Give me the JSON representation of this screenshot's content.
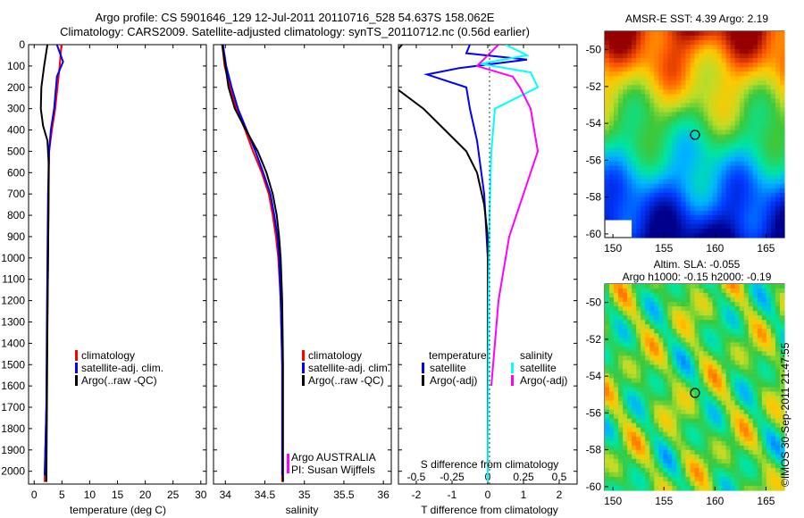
{
  "header": {
    "line1": "Argo profile: CS 5901646_129 12-Jul-2011 20110716_528 54.637S 158.062E",
    "line2": "Climatology: CARS2009. Satellite-adjusted climatology: synTS_20110712.nc (0.56d earlier)"
  },
  "maps": {
    "sst_title": "AMSR-E SST: 4.39 Argo: 2.19",
    "sla_title1": "Altim. SLA: -0.055",
    "sla_title2": "Argo h1000: -0.15 h2000: -0.19",
    "lat_ticks": [
      "-50",
      "-52",
      "-54",
      "-56",
      "-58",
      "-60"
    ],
    "lon_ticks": [
      "150",
      "155",
      "160",
      "165"
    ],
    "float_lat": -54.637,
    "float_lon": 158.062
  },
  "stamp": "©IMOS 30-Sep-2011 21:47:55",
  "colors": {
    "climatology": "#ff0000",
    "satellite": "#0000ff",
    "argo": "#000000",
    "satellite_salinity": "#00ffff",
    "argo_salinity": "#ff00ff"
  },
  "chart_data": [
    {
      "type": "line",
      "xlabel": "temperature (deg C)",
      "ylabel": "",
      "xlim": [
        -1,
        31
      ],
      "ylim": [
        2060,
        0
      ],
      "x_ticks": [
        "0",
        "5",
        "10",
        "15",
        "20",
        "25",
        "30"
      ],
      "y_ticks": [
        "0",
        "100",
        "200",
        "300",
        "400",
        "500",
        "600",
        "700",
        "800",
        "900",
        "1000",
        "1100",
        "1200",
        "1300",
        "1400",
        "1500",
        "1600",
        "1700",
        "1800",
        "1900",
        "2000"
      ],
      "legend": [
        "climatology",
        "satellite-adj. clim.",
        "Argo(..raw -QC)"
      ],
      "series": [
        {
          "name": "climatology",
          "x": [
            4.9,
            4.6,
            4.2,
            3.8,
            3.2,
            2.7,
            2.6,
            2.5,
            2.4,
            2.2,
            1.9
          ],
          "y": [
            0,
            100,
            200,
            300,
            400,
            500,
            700,
            1000,
            1300,
            1700,
            2050
          ]
        },
        {
          "name": "satellite-adj. clim.",
          "x": [
            4.1,
            5.2,
            4.1,
            3.6,
            3.0,
            2.7,
            2.5,
            2.4,
            2.3,
            2.2,
            1.9
          ],
          "y": [
            0,
            80,
            150,
            300,
            400,
            500,
            700,
            1000,
            1300,
            1700,
            2020
          ]
        },
        {
          "name": "Argo(..raw -QC)",
          "x": [
            2.4,
            1.8,
            1.3,
            1.2,
            1.6,
            2.4,
            2.6,
            2.6,
            2.5,
            2.4,
            2.3,
            2.2
          ],
          "y": [
            0,
            100,
            200,
            300,
            380,
            450,
            550,
            700,
            1000,
            1300,
            1700,
            2050
          ]
        }
      ]
    },
    {
      "type": "line",
      "xlabel": "salinity",
      "ylabel": "",
      "xlim": [
        33.85,
        36.1
      ],
      "ylim": [
        2060,
        0
      ],
      "x_ticks": [
        "34",
        "34.5",
        "35",
        "35.5",
        "36"
      ],
      "legend": [
        "climatology",
        "satellite-adj. clim.",
        "Argo(..raw -QC)"
      ],
      "annotation1": "Argo AUSTRALIA",
      "annotation2": "PI: Susan Wijffels",
      "series": [
        {
          "name": "climatology",
          "x": [
            33.96,
            33.99,
            34.06,
            34.14,
            34.25,
            34.35,
            34.46,
            34.55,
            34.6,
            34.64,
            34.67,
            34.7,
            34.72,
            34.72
          ],
          "y": [
            0,
            100,
            200,
            300,
            400,
            500,
            600,
            700,
            800,
            900,
            1000,
            1200,
            1500,
            2050
          ]
        },
        {
          "name": "satellite-adj. clim.",
          "x": [
            33.97,
            34.01,
            34.08,
            34.16,
            34.27,
            34.38,
            34.48,
            34.57,
            34.62,
            34.66,
            34.68,
            34.7,
            34.72,
            34.72
          ],
          "y": [
            0,
            100,
            200,
            300,
            400,
            500,
            600,
            700,
            800,
            900,
            1000,
            1200,
            1500,
            2020
          ]
        },
        {
          "name": "Argo(..raw -QC)",
          "x": [
            33.96,
            34.0,
            34.04,
            34.12,
            34.26,
            34.41,
            34.52,
            34.6,
            34.65,
            34.68,
            34.7,
            34.72,
            34.73,
            34.73
          ],
          "y": [
            0,
            100,
            200,
            300,
            400,
            500,
            600,
            700,
            800,
            900,
            1000,
            1200,
            1500,
            2050
          ]
        }
      ]
    },
    {
      "type": "line",
      "xlabel": "T difference from climatology",
      "xlabel_top": "S difference from climatology",
      "ylabel": "",
      "xlim": [
        -2.5,
        2.5
      ],
      "ylim": [
        2060,
        0
      ],
      "x_ticks": [
        "-2",
        "-1",
        "0",
        "1",
        "2"
      ],
      "x_ticks_top": [
        "-0.5",
        "-0.25",
        "0",
        "0.25",
        "0.5"
      ],
      "legend_t_title": "temperature",
      "legend_s_title": "salinity",
      "legend": [
        "satellite",
        "Argo(-adj)",
        "satellite",
        "Argo(-adj)"
      ],
      "series": [
        {
          "name": "satellite (temperature)",
          "x": [
            -0.5,
            -0.6,
            1.1,
            -0.8,
            -1.7,
            -0.6,
            -0.5,
            -0.3,
            -0.1,
            0,
            0,
            0
          ],
          "y": [
            0,
            40,
            70,
            110,
            140,
            200,
            300,
            450,
            700,
            1000,
            1500,
            2050
          ]
        },
        {
          "name": "Argo(-adj) (temperature)",
          "x": [
            -2.4,
            -2.9,
            -2.6,
            -1.8,
            -1.2,
            -0.6,
            -0.3,
            -0.1,
            0,
            0,
            0
          ],
          "y": [
            0,
            100,
            200,
            300,
            400,
            500,
            600,
            750,
            900,
            1200,
            2050
          ]
        },
        {
          "name": "satellite (salinity)",
          "x": [
            0.5,
            1.1,
            -0.2,
            1.2,
            1.4,
            0.2,
            0.1,
            0.05,
            0.02,
            0
          ],
          "y": [
            0,
            50,
            90,
            130,
            200,
            300,
            500,
            800,
            1200,
            2050
          ]
        },
        {
          "name": "Argo(-adj) (salinity)",
          "x": [
            0.3,
            -0.3,
            0.7,
            0.9,
            1.2,
            1.4,
            1.0,
            0.6,
            0.3,
            0.1
          ],
          "y": [
            0,
            100,
            150,
            200,
            300,
            500,
            700,
            900,
            1200,
            1600
          ]
        }
      ]
    }
  ]
}
